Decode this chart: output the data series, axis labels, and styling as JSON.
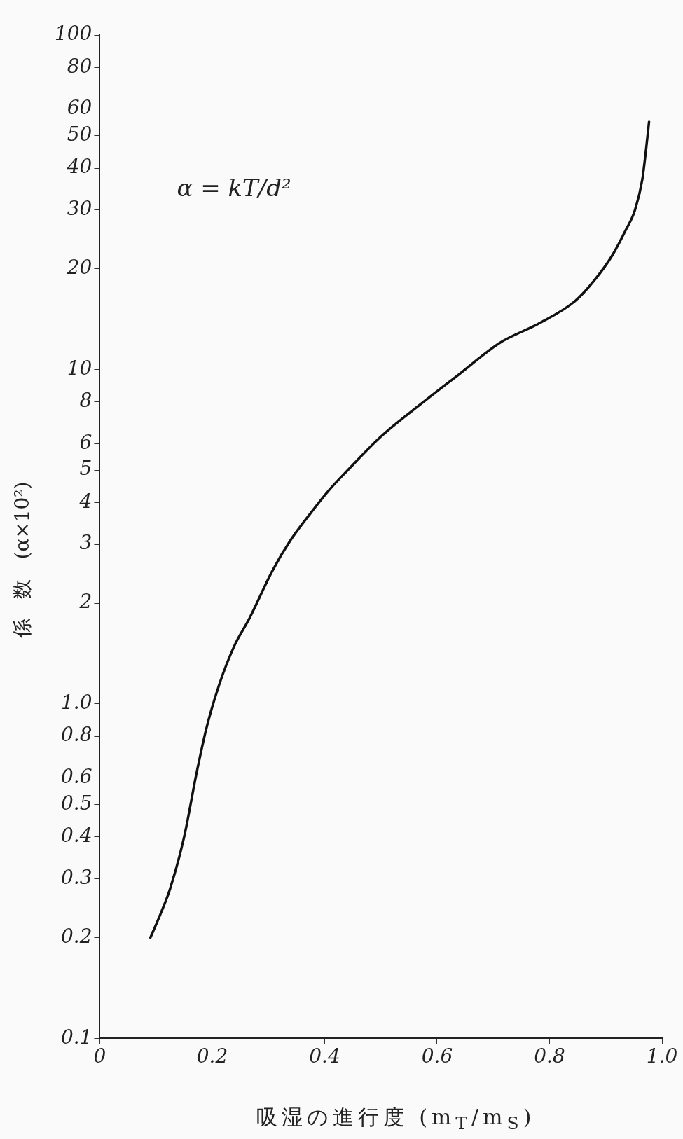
{
  "chart_data": {
    "type": "line",
    "xlabel": "吸湿の進行度 (m$_{T}$/m$_{S}$)",
    "ylabel": "係　数　(α×10²)",
    "annotations": [
      "α = kT/d²"
    ],
    "x": [
      0.09,
      0.11,
      0.125,
      0.15,
      0.172,
      0.19,
      0.213,
      0.24,
      0.266,
      0.307,
      0.34,
      0.374,
      0.41,
      0.441,
      0.5,
      0.576,
      0.64,
      0.711,
      0.78,
      0.845,
      0.88,
      0.912,
      0.935,
      0.952,
      0.965,
      0.972,
      0.977
    ],
    "series": [
      {
        "color": "#111111",
        "values": [
          0.2,
          0.24,
          0.28,
          0.4,
          0.62,
          0.85,
          1.15,
          1.5,
          1.8,
          2.5,
          3.1,
          3.7,
          4.4,
          5,
          6.3,
          8,
          9.7,
          12,
          13.7,
          16,
          18.5,
          22,
          26,
          30,
          37,
          46,
          55
        ]
      }
    ],
    "xlim": [
      0,
      1
    ],
    "xticks": [
      0,
      0.2,
      0.4,
      0.6,
      0.8,
      {
        "value": 1,
        "label": "1.0"
      }
    ],
    "ylim": [
      0.1,
      100
    ],
    "yticks": [
      0.1,
      0.2,
      0.3,
      0.4,
      0.5,
      0.6,
      0.8,
      {
        "value": 1,
        "label": "1.0"
      },
      2,
      3,
      4,
      5,
      6,
      8,
      10,
      20,
      30,
      40,
      50,
      60,
      80,
      100
    ],
    "log": true,
    "grid": false,
    "legend": false,
    "marker": "none",
    "line_style": "solid"
  }
}
